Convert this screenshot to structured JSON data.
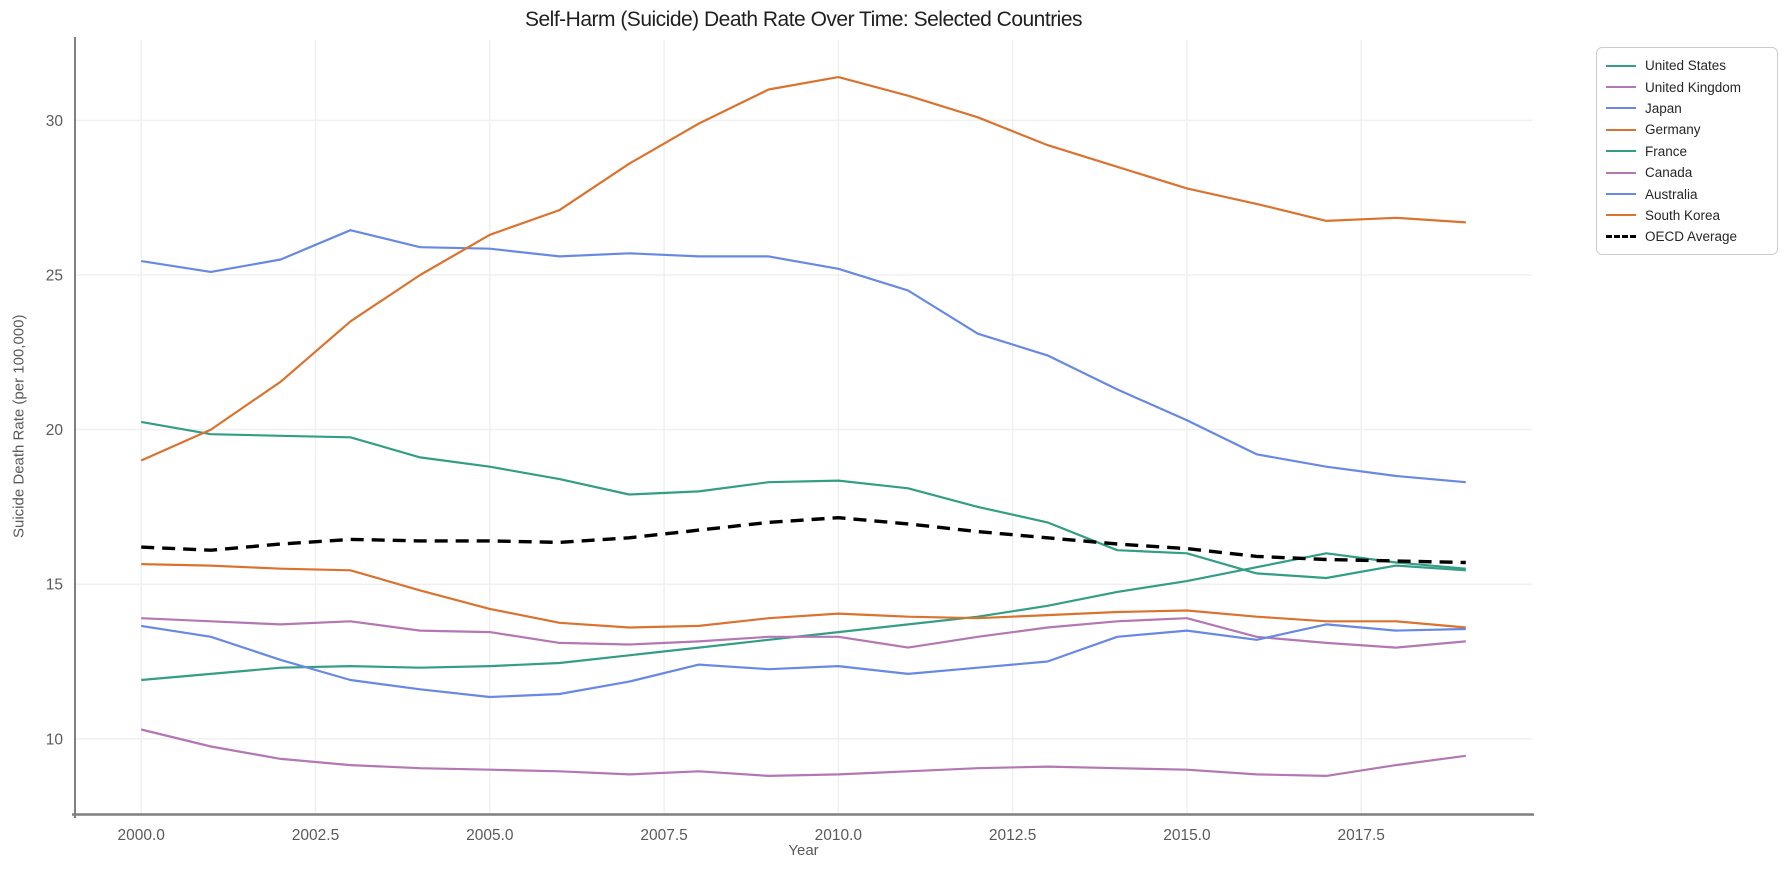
{
  "chart_data": {
    "type": "line",
    "title": "Self-Harm (Suicide) Death Rate Over Time: Selected Countries",
    "xlabel": "Year",
    "ylabel": "Suicide Death Rate (per 100,000)",
    "x": [
      2000,
      2001,
      2002,
      2003,
      2004,
      2005,
      2006,
      2007,
      2008,
      2009,
      2010,
      2011,
      2012,
      2013,
      2014,
      2015,
      2016,
      2017,
      2018,
      2019
    ],
    "xlim": [
      1999.05,
      2019.95
    ],
    "ylim": [
      7.6,
      32.6
    ],
    "xticks": [
      2000.0,
      2002.5,
      2005.0,
      2007.5,
      2010.0,
      2012.5,
      2015.0,
      2017.5
    ],
    "xtick_labels": [
      "2000.0",
      "2002.5",
      "2005.0",
      "2007.5",
      "2010.0",
      "2012.5",
      "2015.0",
      "2017.5"
    ],
    "yticks": [
      10,
      15,
      20,
      25,
      30
    ],
    "ytick_labels": [
      "10",
      "15",
      "20",
      "25",
      "30"
    ],
    "grid": true,
    "legend_position": "outside-upper-right",
    "series": [
      {
        "name": "United States",
        "color": "#339e85",
        "style": "solid",
        "values": [
          11.9,
          12.1,
          12.3,
          12.35,
          12.3,
          12.35,
          12.45,
          12.7,
          12.95,
          13.2,
          13.45,
          13.7,
          13.95,
          14.3,
          14.75,
          15.1,
          15.55,
          16.0,
          15.7,
          15.5
        ]
      },
      {
        "name": "United Kingdom",
        "color": "#b377b2",
        "style": "solid",
        "values": [
          10.3,
          9.75,
          9.35,
          9.15,
          9.05,
          9.0,
          8.95,
          8.85,
          8.95,
          8.8,
          8.85,
          8.95,
          9.05,
          9.1,
          9.05,
          9.0,
          8.85,
          8.8,
          9.15,
          9.45
        ]
      },
      {
        "name": "Japan",
        "color": "#6789e4",
        "style": "solid",
        "values": [
          25.45,
          25.1,
          25.5,
          26.45,
          25.9,
          25.85,
          25.6,
          25.7,
          25.6,
          25.6,
          25.2,
          24.5,
          23.1,
          22.4,
          21.3,
          20.3,
          19.2,
          18.8,
          18.5,
          18.3
        ]
      },
      {
        "name": "Germany",
        "color": "#d9732f",
        "style": "solid",
        "values": [
          15.65,
          15.6,
          15.5,
          15.45,
          14.8,
          14.2,
          13.75,
          13.6,
          13.65,
          13.9,
          14.05,
          13.95,
          13.9,
          14.0,
          14.1,
          14.15,
          13.95,
          13.8,
          13.8,
          13.6
        ]
      },
      {
        "name": "France",
        "color": "#339e85",
        "style": "solid",
        "values": [
          20.25,
          19.85,
          19.8,
          19.75,
          19.1,
          18.8,
          18.4,
          17.9,
          18.0,
          18.3,
          18.35,
          18.1,
          17.5,
          17.0,
          16.1,
          16.0,
          15.35,
          15.2,
          15.6,
          15.45
        ]
      },
      {
        "name": "Canada",
        "color": "#b377b2",
        "style": "solid",
        "values": [
          13.9,
          13.8,
          13.7,
          13.8,
          13.5,
          13.45,
          13.1,
          13.05,
          13.15,
          13.3,
          13.3,
          12.95,
          13.3,
          13.6,
          13.8,
          13.9,
          13.3,
          13.1,
          12.95,
          13.15
        ]
      },
      {
        "name": "Australia",
        "color": "#6789e4",
        "style": "solid",
        "values": [
          13.65,
          13.3,
          12.55,
          11.9,
          11.6,
          11.35,
          11.45,
          11.85,
          12.4,
          12.25,
          12.35,
          12.1,
          12.3,
          12.5,
          13.3,
          13.5,
          13.2,
          13.7,
          13.5,
          13.55
        ]
      },
      {
        "name": "South Korea",
        "color": "#d9732f",
        "style": "solid",
        "values": [
          19.0,
          20.0,
          21.55,
          23.5,
          25.0,
          26.3,
          27.1,
          28.6,
          29.9,
          31.0,
          31.4,
          30.8,
          30.1,
          29.2,
          28.5,
          27.8,
          27.3,
          26.75,
          26.85,
          26.7
        ]
      },
      {
        "name": "OECD Average",
        "color": "#000000",
        "style": "dashed",
        "values": [
          16.2,
          16.1,
          16.3,
          16.45,
          16.4,
          16.4,
          16.35,
          16.5,
          16.75,
          17.0,
          17.15,
          16.95,
          16.7,
          16.5,
          16.3,
          16.15,
          15.9,
          15.8,
          15.75,
          15.7
        ]
      }
    ]
  }
}
